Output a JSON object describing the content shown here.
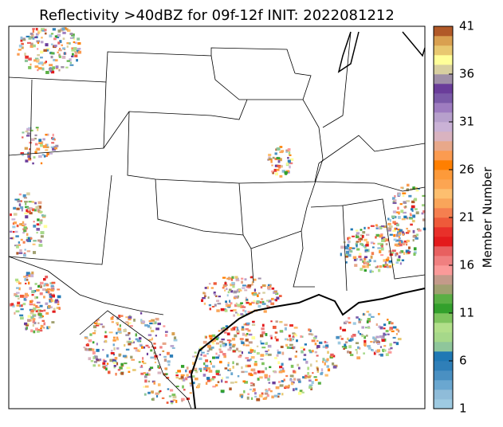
{
  "title": "Reflectivity >40dBZ for 09f-12f INIT: 2022081212",
  "colorbar": {
    "label": "Member Number",
    "range": [
      1,
      41
    ],
    "ticks": [
      1,
      6,
      11,
      16,
      21,
      26,
      31,
      36,
      41
    ],
    "colors": [
      "#9ecae1",
      "#8fbcd9",
      "#6aa7d0",
      "#4a90c2",
      "#2f7fb8",
      "#1f78b4",
      "#8fc69b",
      "#a6d88a",
      "#b2df8a",
      "#7fc45e",
      "#33a02c",
      "#5aaf44",
      "#a0a070",
      "#c49a8a",
      "#fb9a99",
      "#f08080",
      "#e86060",
      "#e31a1c",
      "#e8302a",
      "#ee5a3a",
      "#f57f4f",
      "#f9a55a",
      "#fdbf6f",
      "#fca552",
      "#fd9a3a",
      "#ff7f00",
      "#fb9b50",
      "#e8a88a",
      "#d9b3c0",
      "#cab2d6",
      "#b7a0cc",
      "#9e7cc0",
      "#7b5aa8",
      "#6a3d9a",
      "#a090a8",
      "#d8cfa0",
      "#ffff99",
      "#e8c870",
      "#d9a050",
      "#b15928"
    ]
  }
}
